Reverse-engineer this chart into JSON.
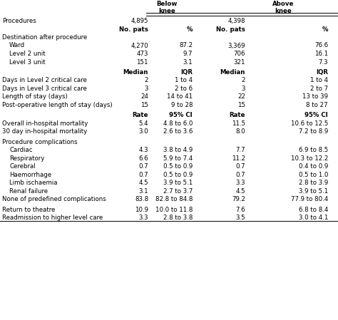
{
  "destination_rows": [
    [
      "Ward",
      "4,270",
      "87.2",
      "3,369",
      "76.6"
    ],
    [
      "Level 2 unit",
      "473",
      "9.7",
      "706",
      "16.1"
    ],
    [
      "Level 3 unit",
      "151",
      "3.1",
      "321",
      "7.3"
    ]
  ],
  "median_rows": [
    [
      "Days in Level 2 critical care",
      "2",
      "1 to 4",
      "2",
      "1 to 4"
    ],
    [
      "Days in Level 3 critical care",
      "3",
      "2 to 6",
      "3",
      "2 to 7"
    ],
    [
      "Length of stay (days)",
      "24",
      "14 to 41",
      "22",
      "13 to 39"
    ],
    [
      "Post-operative length of stay (days)",
      "15",
      "9 to 28",
      "15",
      "8 to 27"
    ]
  ],
  "mortality_rows": [
    [
      "Overall in-hospital mortality",
      "5.4",
      "4.8 to 6.0",
      "11.5",
      "10.6 to 12.5"
    ],
    [
      "30 day in-hospital mortality",
      "3.0",
      "2.6 to 3.6",
      "8.0",
      "7.2 to 8.9"
    ]
  ],
  "complications_rows": [
    [
      "Cardiac",
      "4.3",
      "3.8 to 4.9",
      "7.7",
      "6.9 to 8.5"
    ],
    [
      "Respiratory",
      "6.6",
      "5.9 to 7.4",
      "11.2",
      "10.3 to 12.2"
    ],
    [
      "Cerebral",
      "0.7",
      "0.5 to 0.9",
      "0.7",
      "0.4 to 0.9"
    ],
    [
      "Haemorrhage",
      "0.7",
      "0.5 to 0.9",
      "0.7",
      "0.5 to 1.0"
    ],
    [
      "Limb ischaemia",
      "4.5",
      "3.9 to 5.1",
      "3.3",
      "2.8 to 3.9"
    ],
    [
      "Renal failure",
      "3.1",
      "2.7 to 3.7",
      "4.5",
      "3.9 to 5.1"
    ],
    [
      "None of predefined complications",
      "83.8",
      "82.8 to 84.8",
      "79.2",
      "77.9 to 80.4"
    ]
  ],
  "last_rows": [
    [
      "Return to theatre",
      "10.9",
      "10.0 to 11.8",
      "7.6",
      "6.8 to 8.4"
    ],
    [
      "Readmission to higher level care",
      "3.3",
      "2.8 to 3.8",
      "3.5",
      "3.0 to 4.1"
    ]
  ],
  "bg_color": "#ffffff",
  "line_color": "#000000",
  "figw": 4.74,
  "figh": 4.49,
  "dpi": 100
}
